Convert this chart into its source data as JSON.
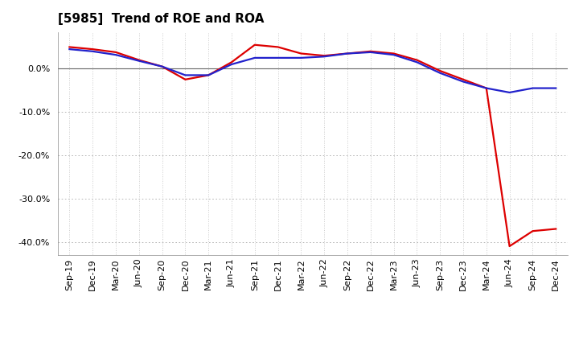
{
  "title": "[5985]  Trend of ROE and ROA",
  "x_labels": [
    "Sep-19",
    "Dec-19",
    "Mar-20",
    "Jun-20",
    "Sep-20",
    "Dec-20",
    "Mar-21",
    "Jun-21",
    "Sep-21",
    "Dec-21",
    "Mar-22",
    "Jun-22",
    "Sep-22",
    "Dec-22",
    "Mar-23",
    "Jun-23",
    "Sep-23",
    "Dec-23",
    "Mar-24",
    "Jun-24",
    "Sep-24",
    "Dec-24"
  ],
  "roe": [
    5.0,
    4.5,
    3.8,
    2.0,
    0.5,
    -2.5,
    -1.5,
    1.5,
    5.5,
    5.0,
    3.5,
    3.0,
    3.5,
    4.0,
    3.5,
    2.0,
    -0.5,
    -2.5,
    -4.5,
    -41.0,
    -37.5,
    -37.0
  ],
  "roa": [
    4.5,
    4.0,
    3.2,
    1.8,
    0.5,
    -1.5,
    -1.5,
    1.0,
    2.5,
    2.5,
    2.5,
    2.8,
    3.5,
    3.8,
    3.2,
    1.5,
    -1.0,
    -3.0,
    -4.5,
    -5.5,
    -4.5,
    -4.5
  ],
  "ylim": [
    -43,
    8.5
  ],
  "yticks": [
    0.0,
    -10.0,
    -20.0,
    -30.0,
    -40.0
  ],
  "roe_color": "#dd0000",
  "roa_color": "#2222cc",
  "background_color": "#ffffff",
  "plot_bg_color": "#ffffff",
  "grid_color_dot": "#aaaaaa",
  "grid_color_solid": "#666666",
  "title_fontsize": 11,
  "legend_fontsize": 9.5,
  "axis_fontsize": 8
}
